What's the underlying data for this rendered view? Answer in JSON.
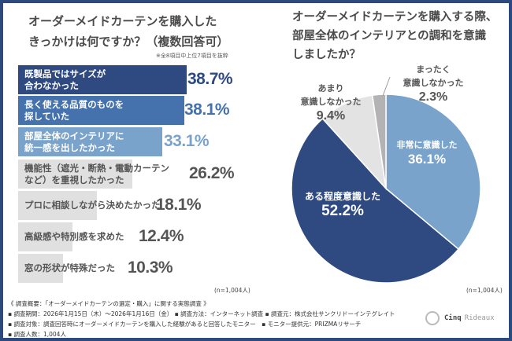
{
  "left": {
    "title_line1": "オーダーメイドカーテンを購入した",
    "title_line2": "きっかけは何ですか？（複数回答可）",
    "note": "※全8項目中上位7項目を抜粋",
    "n": "(n=1,004人)"
  },
  "right": {
    "title_line1": "オーダーメイドカーテンを購入する際、",
    "title_line2": "部屋全体のインテリアとの調和を意識",
    "title_line3": "しましたか？",
    "n": "(n=1,004人)"
  },
  "chart_data": [
    {
      "type": "bar",
      "orientation": "horizontal",
      "unit": "%",
      "categories": [
        "既製品ではサイズが合わなかった",
        "長く使える品質のものを探していた",
        "部屋全体のインテリアに統一感を出したかった",
        "機能性（遮光・断熱・電動カーテンなど）を重視したかった",
        "プロに相談しながら決めたかった",
        "高級感や特別感を求めた",
        "窓の形状が特殊だった"
      ],
      "label_lines": [
        [
          "既製品ではサイズが",
          "合わなかった"
        ],
        [
          "長く使える品質のものを",
          "探していた"
        ],
        [
          "部屋全体のインテリアに",
          "統一感を出したかった"
        ],
        [
          "機能性（遮光・断熱・電動カーテン",
          "など）を重視したかった"
        ],
        [
          "プロに相談しながら決めたかった"
        ],
        [
          "高級感や特別感を求めた"
        ],
        [
          "窓の形状が特殊だった"
        ]
      ],
      "values": [
        38.7,
        38.1,
        33.1,
        26.2,
        18.1,
        12.4,
        10.3
      ],
      "value_labels": [
        "38.7%",
        "38.1%",
        "33.1%",
        "26.2%",
        "18.1%",
        "12.4%",
        "10.3%"
      ],
      "colors": [
        "#2e4a80",
        "#4571ac",
        "#7aa3cc",
        "#e0e0e0",
        "#e0e0e0",
        "#e0e0e0",
        "#e0e0e0"
      ],
      "value_colors": [
        "#2e4a80",
        "#4571ac",
        "#7aa3cc",
        "#555555",
        "#555555",
        "#555555",
        "#555555"
      ]
    },
    {
      "type": "pie",
      "start": "top",
      "direction": "clockwise",
      "slices": [
        {
          "label_lines": [
            "非常に意識した"
          ],
          "value": 36.1,
          "value_label": "36.1%",
          "color": "#7aa3cc"
        },
        {
          "label_lines": [
            "ある程度意識した"
          ],
          "value": 52.2,
          "value_label": "52.2%",
          "color": "#2e4a80"
        },
        {
          "label_lines": [
            "あまり",
            "意識しなかった"
          ],
          "value": 9.4,
          "value_label": "9.4%",
          "color": "#e3e3e3"
        },
        {
          "label_lines": [
            "まったく",
            "意識しなかった"
          ],
          "value": 2.3,
          "value_label": "2.3%",
          "color": "#b3b3b3"
        }
      ]
    }
  ],
  "footer": {
    "line1": "《 調査概要：「オーダーメイドカーテンの選定・購入」に関する実態調査 》",
    "line2": "▪ 調査期間：2026年1月15日（木）～2026年1月16日（金） ▪ 調査方法：インターネット調査 ▪ 調査元：株式会社サンクリドーインテグレイト",
    "line3": "▪ 調査対象：調査回答時にオーダーメイドカーテンを購入した経験があると回答したモニター　▪ モニター提供元：PRIZMAリサーチ",
    "line4": "▪ 調査人数：1,004人"
  },
  "logo": {
    "text1": "Cinq",
    "text2": "Rideaux"
  }
}
